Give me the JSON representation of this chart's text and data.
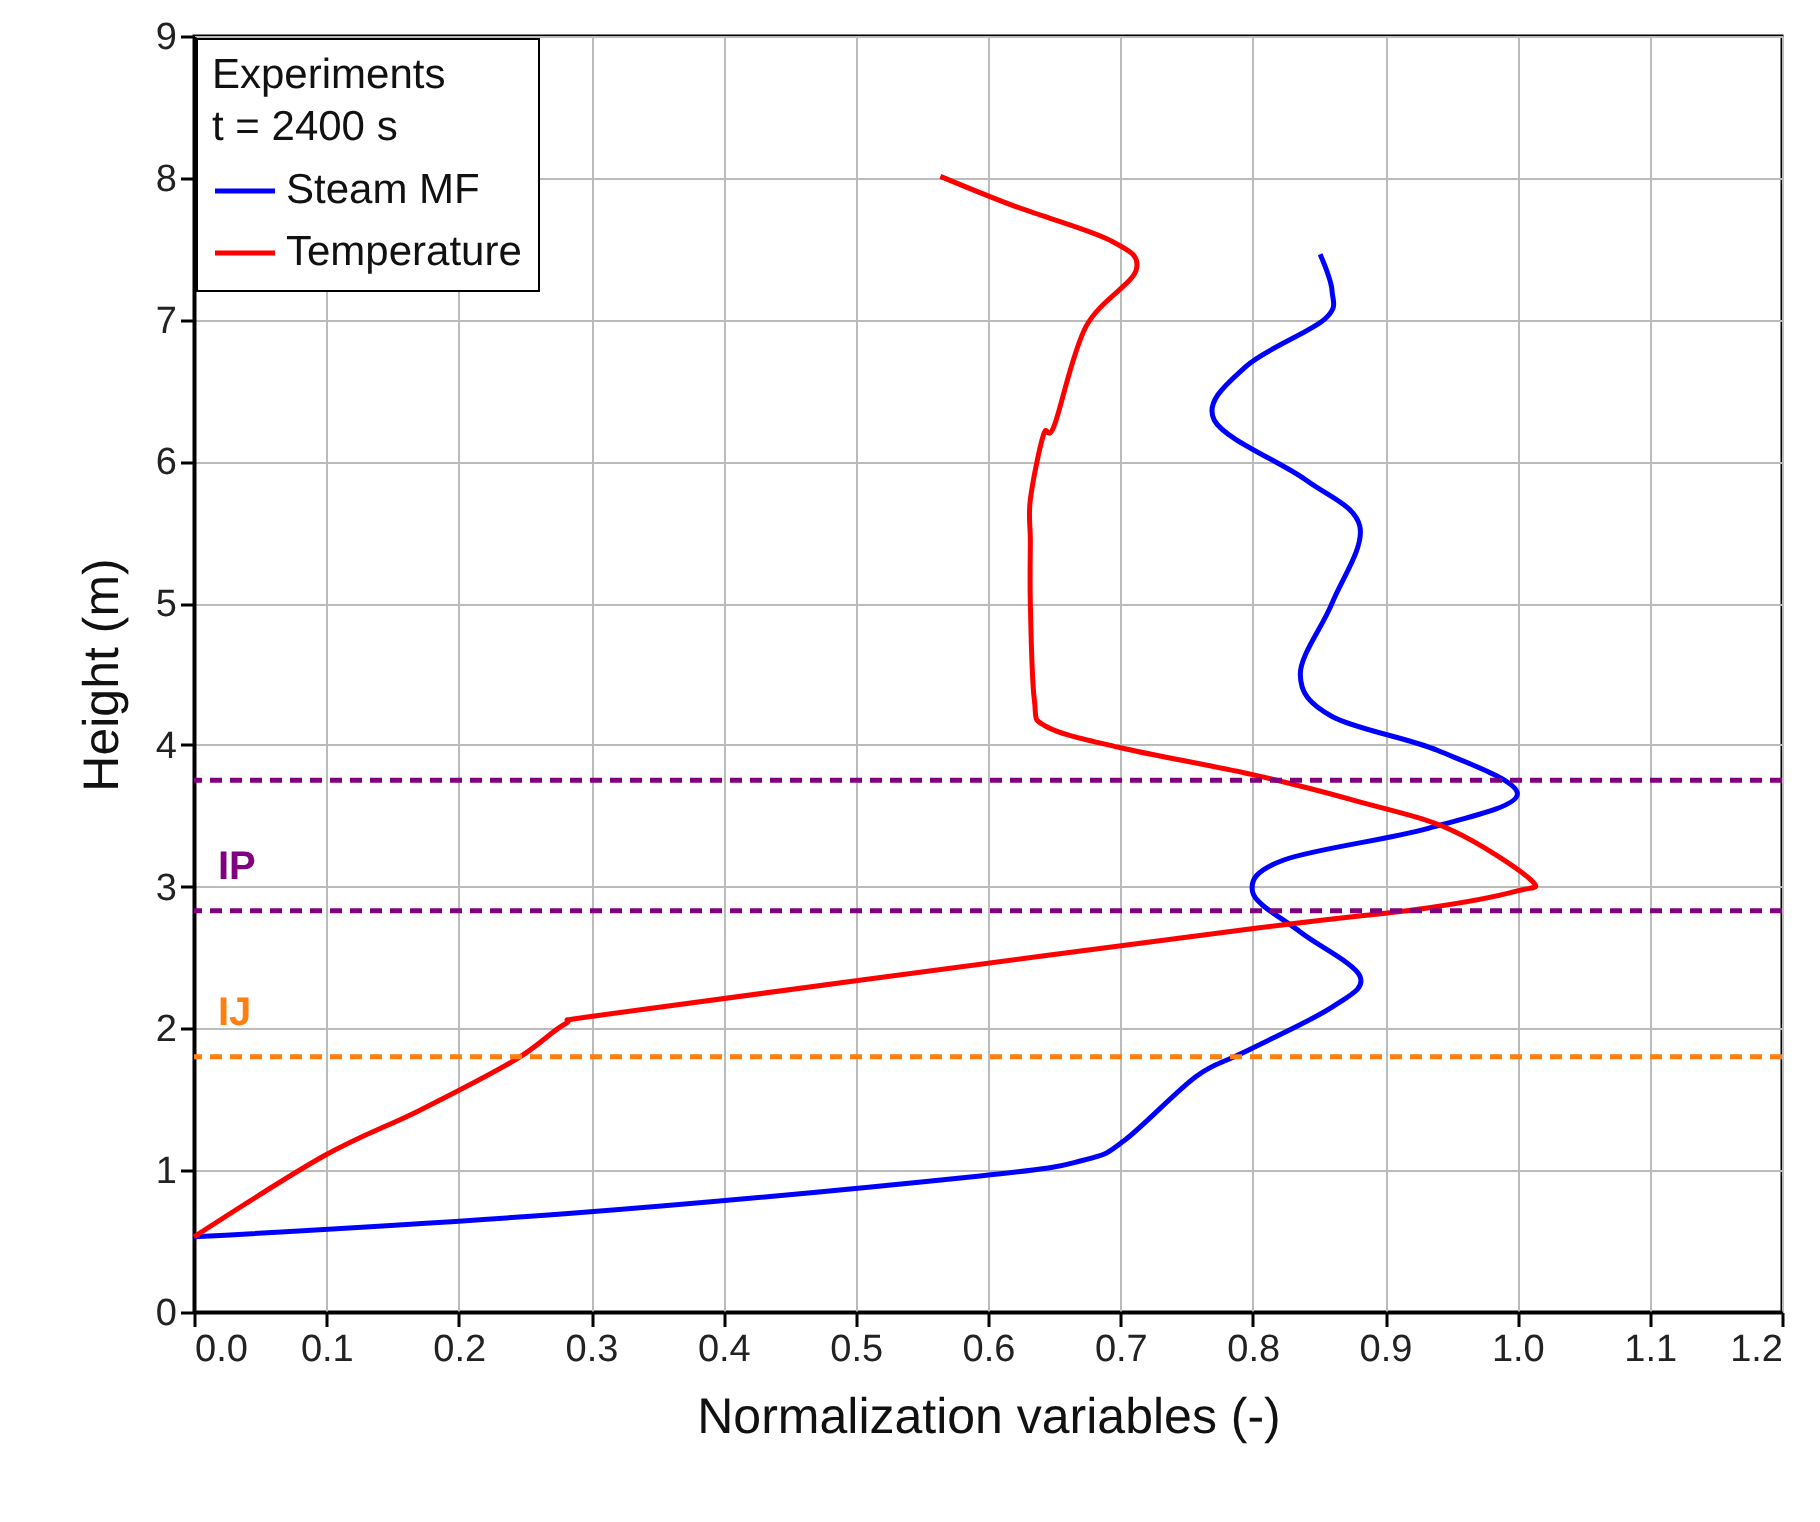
{
  "chart_data": {
    "type": "line",
    "xlabel": "Normalization variables (-)",
    "ylabel": "Height (m)",
    "legend_title": "Experiments\nt = 2400 s",
    "legend": "top left",
    "grid": true,
    "line_style": "solid",
    "marker": "none",
    "xlim": [
      0,
      1.2
    ],
    "xticks": [
      {
        "value": 0,
        "label": "0.0"
      },
      0.1,
      0.2,
      0.3,
      0.4,
      0.5,
      0.6,
      0.7,
      0.8,
      0.9,
      {
        "value": 1,
        "label": "1.0"
      },
      1.1,
      1.2
    ],
    "ylim": [
      0,
      9
    ],
    "yticks": [
      0,
      1,
      2,
      3,
      4,
      5,
      6,
      7,
      8,
      9
    ],
    "series": [
      {
        "name": "Steam MF",
        "color": "#0000ff",
        "x": [
          0,
          0.29,
          0.594,
          0.672,
          0.703,
          0.757,
          0.793,
          0.86,
          0.881,
          0.836,
          0.8,
          0.824,
          0.932,
          1.0,
          0.94,
          0.86,
          0.836,
          0.86,
          0.881,
          0.84,
          0.771,
          0.795,
          0.854,
          0.86,
          0.851
        ],
        "values": [
          0.53,
          0.7,
          0.96,
          1.07,
          1.21,
          1.66,
          1.83,
          2.15,
          2.37,
          2.68,
          2.96,
          3.19,
          3.41,
          3.65,
          3.96,
          4.2,
          4.5,
          5.0,
          5.54,
          5.87,
          6.29,
          6.67,
          7.0,
          7.2,
          7.46
        ]
      },
      {
        "name": "Temperature",
        "color": "#ff0000",
        "x": [
          0,
          0.098,
          0.17,
          0.243,
          0.28,
          0.304,
          0.503,
          0.805,
          0.932,
          1.0,
          1.01,
          0.95,
          0.88,
          0.8,
          0.7,
          0.644,
          0.635,
          0.632,
          0.632,
          0.632,
          0.642,
          0.65,
          0.674,
          0.712,
          0.692,
          0.62,
          0.564
        ],
        "values": [
          0.53,
          1.1,
          1.42,
          1.78,
          2.03,
          2.09,
          2.34,
          2.71,
          2.85,
          2.97,
          3.05,
          3.4,
          3.6,
          3.79,
          3.98,
          4.13,
          4.32,
          5.0,
          5.44,
          5.73,
          6.19,
          6.25,
          6.95,
          7.35,
          7.56,
          7.8,
          8.01
        ]
      }
    ],
    "ref_lines": [
      {
        "axis": "y",
        "value": 3.75,
        "color": "#800080",
        "line_style": "dashed"
      },
      {
        "axis": "y",
        "value": 2.83,
        "color": "#800080",
        "line_style": "dashed",
        "label": "IP"
      },
      {
        "axis": "y",
        "value": 1.8,
        "color": "#ff7f0e",
        "line_style": "dashed",
        "label": "IJ"
      }
    ]
  }
}
